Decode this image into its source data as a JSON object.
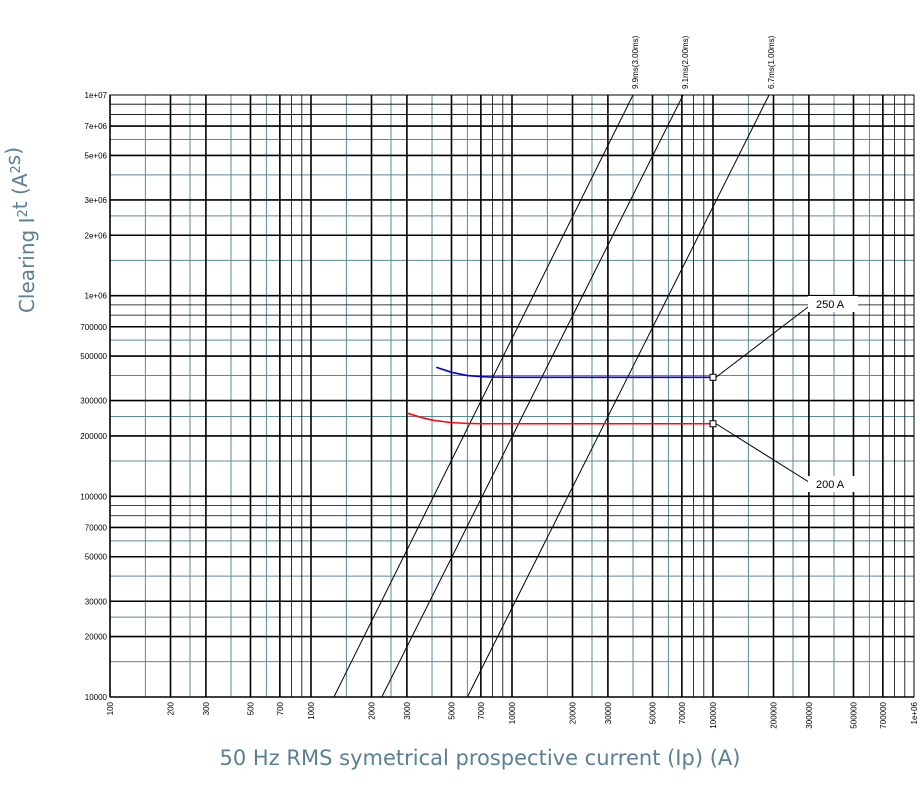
{
  "chart_data": {
    "type": "line",
    "title": "",
    "xlabel": "50 Hz RMS symetrical prospective current (Ip) (A)",
    "ylabel": "Clearing I²t (A²s)",
    "xscale": "log",
    "yscale": "log",
    "xlim": [
      100,
      1000000
    ],
    "ylim": [
      10000,
      10000000
    ],
    "grid": true,
    "grid_colors": {
      "major": "#000000",
      "minor": "#5b8a98"
    },
    "x_ticks": [
      {
        "value": 100,
        "label": "100"
      },
      {
        "value": 200,
        "label": "200"
      },
      {
        "value": 300,
        "label": "300"
      },
      {
        "value": 500,
        "label": "500"
      },
      {
        "value": 700,
        "label": "700"
      },
      {
        "value": 1000,
        "label": "1000"
      },
      {
        "value": 2000,
        "label": "2000"
      },
      {
        "value": 3000,
        "label": "3000"
      },
      {
        "value": 5000,
        "label": "5000"
      },
      {
        "value": 7000,
        "label": "7000"
      },
      {
        "value": 10000,
        "label": "10000"
      },
      {
        "value": 20000,
        "label": "20000"
      },
      {
        "value": 30000,
        "label": "30000"
      },
      {
        "value": 50000,
        "label": "50000"
      },
      {
        "value": 70000,
        "label": "70000"
      },
      {
        "value": 100000,
        "label": "100000"
      },
      {
        "value": 200000,
        "label": "200000"
      },
      {
        "value": 300000,
        "label": "300000"
      },
      {
        "value": 500000,
        "label": "500000"
      },
      {
        "value": 700000,
        "label": "700000"
      },
      {
        "value": 1000000,
        "label": "1e+06"
      }
    ],
    "y_ticks": [
      {
        "value": 10000,
        "label": "10000"
      },
      {
        "value": 20000,
        "label": "20000"
      },
      {
        "value": 30000,
        "label": "30000"
      },
      {
        "value": 50000,
        "label": "50000"
      },
      {
        "value": 70000,
        "label": "70000"
      },
      {
        "value": 100000,
        "label": "100000"
      },
      {
        "value": 200000,
        "label": "200000"
      },
      {
        "value": 300000,
        "label": "300000"
      },
      {
        "value": 500000,
        "label": "500000"
      },
      {
        "value": 700000,
        "label": "700000"
      },
      {
        "value": 1000000,
        "label": "1e+06"
      },
      {
        "value": 2000000,
        "label": "2e+06"
      },
      {
        "value": 3000000,
        "label": "3e+06"
      },
      {
        "value": 5000000,
        "label": "5e+06"
      },
      {
        "value": 7000000,
        "label": "7e+06"
      },
      {
        "value": 10000000,
        "label": "1e+07"
      }
    ],
    "reference_lines": [
      {
        "name": "9.9ms(3.00ms)",
        "x": [
          1300,
          40000
        ],
        "y": [
          10000,
          10000000
        ]
      },
      {
        "name": "9.1ms(2.00ms)",
        "x": [
          2250,
          71000
        ],
        "y": [
          10000,
          10000000
        ]
      },
      {
        "name": "6.7ms(1.00ms)",
        "x": [
          6000,
          190000
        ],
        "y": [
          10000,
          10000000
        ]
      }
    ],
    "series": [
      {
        "name": "250 A",
        "color": "#0000cc",
        "x": [
          4200,
          5000,
          6000,
          7000,
          8000,
          10000,
          20000,
          50000,
          100000
        ],
        "y": [
          440000,
          415000,
          400000,
          395000,
          393000,
          392000,
          392000,
          392000,
          392000
        ]
      },
      {
        "name": "200 A",
        "color": "#ee1111",
        "x": [
          3000,
          3500,
          4000,
          5000,
          6000,
          7000,
          10000,
          20000,
          50000,
          100000
        ],
        "y": [
          260000,
          248000,
          240000,
          233000,
          231000,
          230000,
          230000,
          230000,
          230000,
          230000
        ]
      }
    ],
    "annotations": [
      {
        "text": "250 A",
        "points_to": {
          "x": 100000,
          "y": 392000
        }
      },
      {
        "text": "200 A",
        "points_to": {
          "x": 100000,
          "y": 230000
        }
      }
    ]
  }
}
